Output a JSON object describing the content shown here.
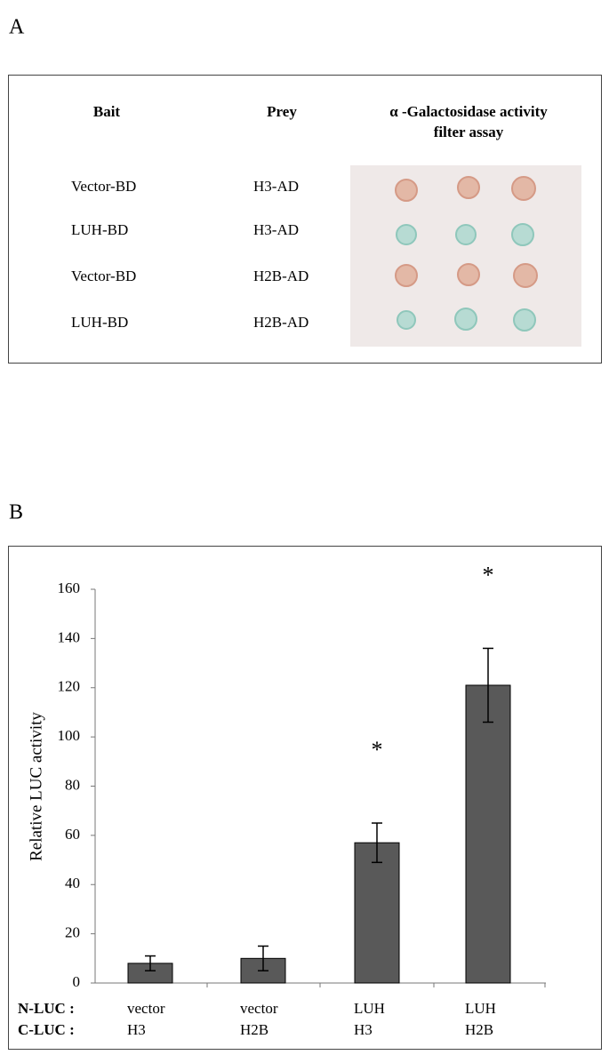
{
  "panel_a": {
    "label": "A",
    "headers": [
      "Bait",
      "Prey",
      "α -Galactosidase activity",
      "filter assay"
    ],
    "rows": [
      [
        "Vector-BD",
        "H3-AD"
      ],
      [
        "LUH-BD",
        "H3-AD"
      ],
      [
        "Vector-BD",
        "H2B-AD"
      ],
      [
        "LUH-BD",
        "H2B-AD"
      ]
    ]
  },
  "chart_data": {
    "type": "bar",
    "label": "B",
    "ylabel": "Relative  LUC  activity",
    "category_row_labels": [
      "N-LUC :",
      "C-LUC :"
    ],
    "categories": [
      "vector",
      "vector",
      "LUH",
      "LUH"
    ],
    "categories_2": [
      "H3",
      "H2B",
      "H3",
      "H2B"
    ],
    "values": [
      8,
      10,
      57,
      121
    ],
    "errors": [
      3,
      5,
      8,
      15
    ],
    "significance": [
      null,
      null,
      "*",
      "*"
    ],
    "color": "#595959",
    "ylim": [
      0,
      160
    ],
    "yticks": [
      0,
      20,
      40,
      60,
      80,
      100,
      120,
      140,
      160
    ]
  }
}
